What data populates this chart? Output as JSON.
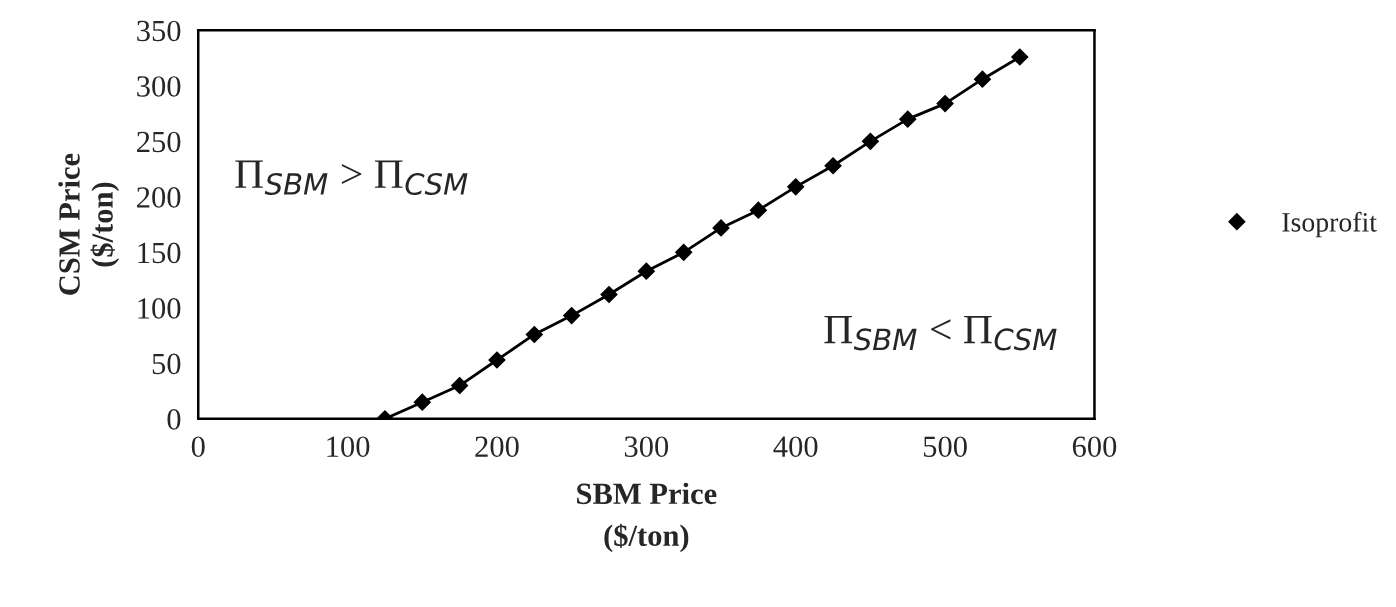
{
  "chart_data": {
    "type": "line",
    "xlabel": "SBM Price\n($/ton)",
    "ylabel": "CSM Price\n($/ton)",
    "x": [
      125,
      150,
      175,
      200,
      225,
      250,
      275,
      300,
      325,
      350,
      375,
      400,
      425,
      450,
      475,
      500,
      525,
      550
    ],
    "series": [
      {
        "name": "Isoprofit",
        "color": "#000000",
        "values": [
          0,
          15,
          30,
          53,
          76,
          93,
          112,
          133,
          150,
          172,
          188,
          209,
          228,
          250,
          270,
          284,
          306,
          326
        ]
      }
    ],
    "xlim": [
      0,
      600
    ],
    "xticks": [
      0,
      100,
      200,
      300,
      400,
      500,
      600
    ],
    "ylim": [
      0,
      350
    ],
    "yticks": [
      0,
      50,
      100,
      150,
      200,
      250,
      300,
      350
    ],
    "annotations": [
      "Π$_{SBM}$ > Π$_{CSM}$",
      "Π$_{SBM}$ < Π$_{CSM}$"
    ],
    "marker": "diamond",
    "line_style": "solid",
    "grid": false,
    "legend": "right"
  }
}
